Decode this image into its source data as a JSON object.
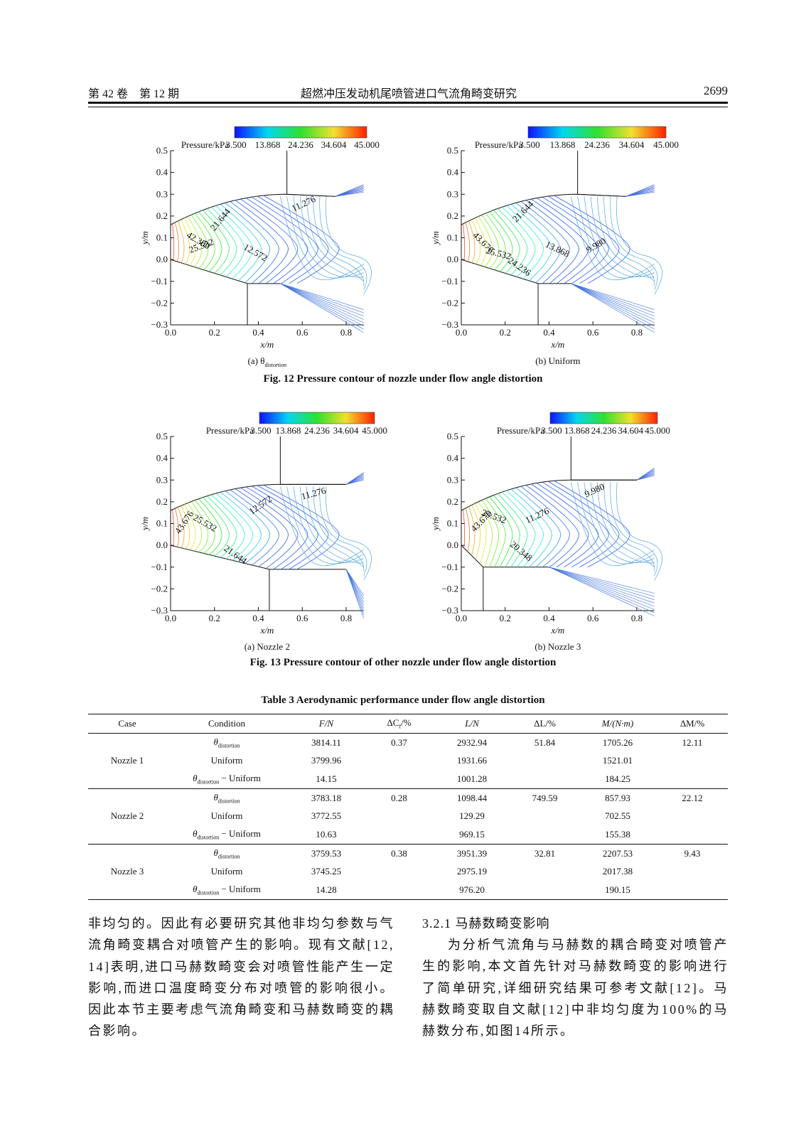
{
  "header": {
    "volume": "第 42 卷",
    "issue": "第 12 期",
    "title": "超燃冲压发动机尾喷管进口气流角畸变研究",
    "page": "2699"
  },
  "figures": [
    {
      "panels": [
        {
          "legend_title": "Pressure/kPa",
          "legend_ticks": [
            "3.500",
            "13.868",
            "24.236",
            "34.604",
            "45.000"
          ],
          "yticks": [
            "0.5",
            "0.4",
            "0.3",
            "0.2",
            "0.1",
            "0.0",
            "−0.1",
            "−0.2",
            "−0.3"
          ],
          "xticks": [
            "0.0",
            "0.2",
            "0.4",
            "0.6",
            "0.8"
          ],
          "ylabel": "y/m",
          "xlabel": "x/m",
          "contour_labels": [
            "42.380",
            "25.532",
            "21.644",
            "12.572",
            "11.276"
          ],
          "label": [
            {
              "text": "(a) θ"
            },
            {
              "sub": "distortion"
            }
          ]
        },
        {
          "legend_title": "Pressure/kPa",
          "legend_ticks": [
            "3.500",
            "13.868",
            "24.236",
            "34.604",
            "45.000"
          ],
          "yticks": [
            "0.5",
            "0.4",
            "0.3",
            "0.2",
            "0.1",
            "0.0",
            "−0.1",
            "−0.2",
            "−0.3"
          ],
          "xticks": [
            "0.0",
            "0.2",
            "0.4",
            "0.6",
            "0.8"
          ],
          "ylabel": "y/m",
          "xlabel": "x/m",
          "contour_labels": [
            "43.676",
            "21.644",
            "25.532",
            "24.236",
            "13.868",
            "9.980"
          ],
          "label": "(b) Uniform"
        }
      ],
      "caption": "Fig. 12    Pressure contour of nozzle under flow angle distortion"
    },
    {
      "panels": [
        {
          "legend_title": "Pressure/kPa",
          "legend_ticks": [
            "3.500",
            "13.868",
            "24.236",
            "34.604",
            "45.000"
          ],
          "yticks": [
            "0.5",
            "0.4",
            "0.3",
            "0.2",
            "0.1",
            "0.0",
            "−0.1",
            "−0.2",
            "−0.3"
          ],
          "xticks": [
            "0.0",
            "0.2",
            "0.4",
            "0.6",
            "0.8"
          ],
          "ylabel": "y/m",
          "xlabel": "x/m",
          "contour_labels": [
            "25.532",
            "43.676",
            "21.644",
            "12.572",
            "11.276"
          ],
          "label": "(a) Nozzle 2"
        },
        {
          "legend_title": "Pressure/kPa",
          "legend_ticks": [
            "3.500",
            "13.868",
            "24.236",
            "34.604",
            "45.000"
          ],
          "yticks": [
            "0.5",
            "0.4",
            "0.3",
            "0.2",
            "0.1",
            "0.0",
            "−0.1",
            "−0.2",
            "−0.3"
          ],
          "xticks": [
            "0.0",
            "0.2",
            "0.4",
            "0.6",
            "0.8"
          ],
          "ylabel": "y/m",
          "xlabel": "x/m",
          "contour_labels": [
            "25.532",
            "43.676",
            "11.276",
            "20.348",
            "9.980"
          ],
          "label": "(b) Nozzle 3"
        }
      ],
      "caption": "Fig. 13    Pressure contour of other nozzle under flow angle distortion"
    }
  ],
  "table": {
    "title": "Table 3    Aerodynamic performance under flow angle distortion",
    "headers": [
      "Case",
      "Condition",
      "F/N",
      [
        {
          "text": "ΔC"
        },
        {
          "sub": "f"
        },
        {
          "text": "/%"
        }
      ],
      "L/N",
      "ΔL/%",
      "M/(N·m)",
      "ΔM/%"
    ],
    "groups": [
      {
        "case": "Nozzle 1",
        "rows": [
          [
            [
              {
                "text": "θ"
              },
              {
                "sub": "distortion"
              }
            ],
            "3814.11",
            "0.37",
            "2932.94",
            "51.84",
            "1705.26",
            "12.11"
          ],
          [
            "Uniform",
            "3799.96",
            null,
            "1931.66",
            null,
            "1521.01",
            null
          ],
          [
            [
              {
                "text": "θ"
              },
              {
                "sub": "distortion"
              },
              {
                "text": " − Uniform"
              }
            ],
            "14.15",
            null,
            "1001.28",
            null,
            "184.25",
            null
          ]
        ]
      },
      {
        "case": "Nozzle 2",
        "rows": [
          [
            [
              {
                "text": "θ"
              },
              {
                "sub": "distortion"
              }
            ],
            "3783.18",
            "0.28",
            "1098.44",
            "749.59",
            "857.93",
            "22.12"
          ],
          [
            "Uniform",
            "3772.55",
            null,
            "129.29",
            null,
            "702.55",
            null
          ],
          [
            [
              {
                "text": "θ"
              },
              {
                "sub": "distortion"
              },
              {
                "text": " − Uniform"
              }
            ],
            "10.63",
            null,
            "969.15",
            null,
            "155.38",
            null
          ]
        ]
      },
      {
        "case": "Nozzle 3",
        "rows": [
          [
            [
              {
                "text": "θ"
              },
              {
                "sub": "distortion"
              }
            ],
            "3759.53",
            "0.38",
            "3951.39",
            "32.81",
            "2207.53",
            "9.43"
          ],
          [
            "Uniform",
            "3745.25",
            null,
            "2975.19",
            null,
            "2017.38",
            null
          ],
          [
            [
              {
                "text": "θ"
              },
              {
                "sub": "distortion"
              },
              {
                "text": " − Uniform"
              }
            ],
            "14.28",
            null,
            "976.20",
            null,
            "190.15",
            null
          ]
        ]
      }
    ]
  },
  "body": {
    "left": "非均匀的。因此有必要研究其他非均匀参数与气流角畸变耦合对喷管产生的影响。现有文献[12, 14]表明,进口马赫数畸变会对喷管性能产生一定影响,而进口温度畸变分布对喷管的影响很小。因此本节主要考虑气流角畸变和马赫数畸变的耦合影响。",
    "heading": "3.2.1    马赫数畸变影响",
    "right": "为分析气流角与马赫数的耦合畸变对喷管产生的影响,本文首先针对马赫数畸变的影响进行了简单研究,详细研究结果可参考文献[12]。马赫数畸变取自文献[12]中非均匀度为100%的马赫数分布,如图14所示。"
  }
}
